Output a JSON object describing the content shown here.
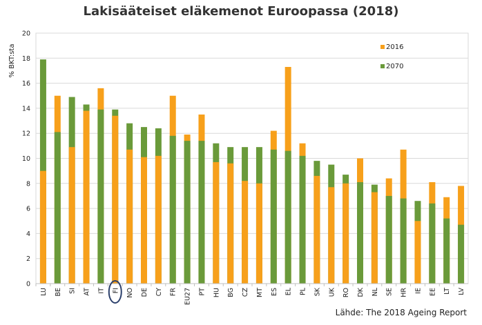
{
  "chart_data": {
    "type": "bar",
    "title": "Lakisääteiset eläkemenot Euroopassa (2018)",
    "ylabel": "% BKT:sta",
    "xlabel": "",
    "ylim": [
      0,
      20
    ],
    "yticks": [
      0,
      2,
      4,
      6,
      8,
      10,
      12,
      14,
      16,
      18,
      20
    ],
    "grid": true,
    "legend_position": "top-right",
    "categories": [
      "LU",
      "BE",
      "SI",
      "AT",
      "IT",
      "FI",
      "NO",
      "DE",
      "CY",
      "FR",
      "EU27",
      "PT",
      "HU",
      "BG",
      "CZ",
      "MT",
      "ES",
      "EL",
      "PL",
      "SK",
      "UK",
      "RO",
      "DK",
      "NL",
      "SE",
      "HR",
      "IE",
      "EE",
      "LT",
      "LV"
    ],
    "highlighted_category": "FI",
    "series": [
      {
        "name": "2016",
        "color": "#f7a01b",
        "values": [
          9.0,
          15.0,
          10.9,
          13.8,
          15.6,
          13.4,
          10.7,
          10.1,
          10.2,
          15.0,
          11.9,
          13.5,
          9.7,
          9.6,
          8.2,
          8.0,
          12.2,
          17.3,
          11.2,
          8.6,
          7.7,
          8.0,
          10.0,
          7.3,
          8.4,
          10.7,
          5.0,
          8.1,
          6.9,
          7.8
        ]
      },
      {
        "name": "2070",
        "color": "#6a9a3a",
        "values": [
          17.9,
          12.1,
          14.9,
          14.3,
          13.9,
          13.9,
          12.8,
          12.5,
          12.4,
          11.8,
          11.4,
          11.4,
          11.2,
          10.9,
          10.9,
          10.9,
          10.7,
          10.6,
          10.2,
          9.8,
          9.5,
          8.7,
          8.1,
          7.9,
          7.0,
          6.8,
          6.6,
          6.4,
          5.2,
          4.7
        ]
      }
    ],
    "source": "Lähde: The 2018 Ageing Report"
  }
}
